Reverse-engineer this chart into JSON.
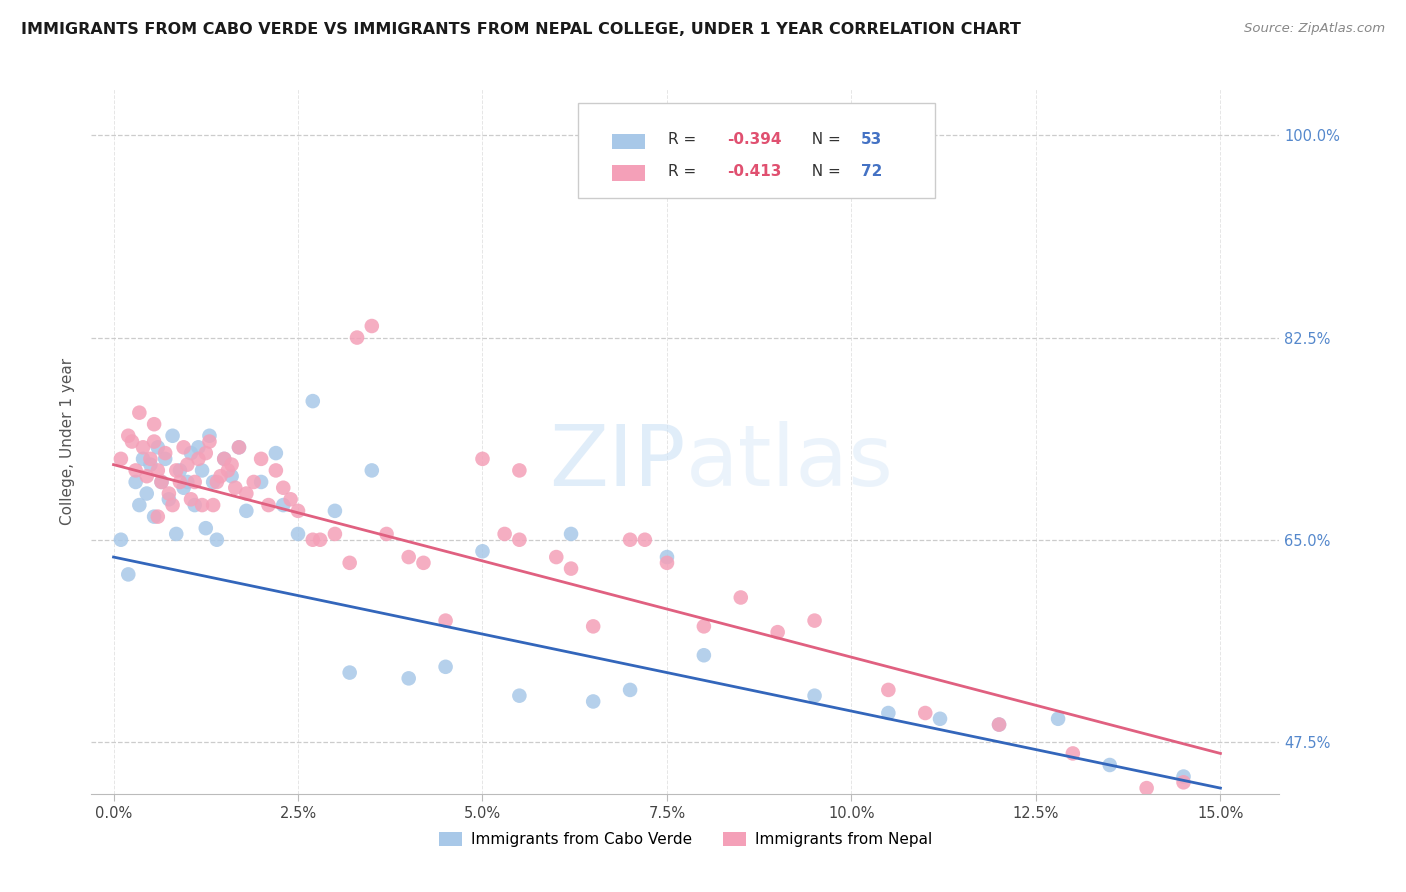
{
  "title": "IMMIGRANTS FROM CABO VERDE VS IMMIGRANTS FROM NEPAL COLLEGE, UNDER 1 YEAR CORRELATION CHART",
  "source": "Source: ZipAtlas.com",
  "ylabel": "College, Under 1 year",
  "legend_labels": [
    "Immigrants from Cabo Verde",
    "Immigrants from Nepal"
  ],
  "cabo_verde_color": "#a8c8e8",
  "nepal_color": "#f4a0b8",
  "cabo_verde_line_color": "#3366bb",
  "nepal_line_color": "#e06080",
  "watermark_zip": "ZIP",
  "watermark_atlas": "atlas",
  "xlim": [
    -0.3,
    15.8
  ],
  "ylim": [
    43.0,
    104.0
  ],
  "x_ticks": [
    0.0,
    2.5,
    5.0,
    7.5,
    10.0,
    12.5,
    15.0
  ],
  "y_ticks": [
    47.5,
    65.0,
    82.5,
    100.0
  ],
  "cabo_verde_x": [
    0.1,
    0.2,
    0.3,
    0.35,
    0.4,
    0.45,
    0.5,
    0.55,
    0.6,
    0.65,
    0.7,
    0.75,
    0.8,
    0.85,
    0.9,
    0.95,
    1.0,
    1.05,
    1.1,
    1.15,
    1.2,
    1.3,
    1.4,
    1.5,
    1.6,
    1.7,
    1.8,
    2.0,
    2.3,
    2.7,
    3.0,
    3.5,
    4.0,
    5.0,
    5.5,
    6.2,
    7.0,
    7.5,
    8.0,
    9.5,
    10.5,
    11.2,
    12.0,
    12.8,
    13.5,
    14.5,
    1.25,
    1.35,
    2.5,
    2.2,
    4.5,
    6.5,
    3.2
  ],
  "cabo_verde_y": [
    65.0,
    62.0,
    70.0,
    68.0,
    72.0,
    69.0,
    71.5,
    67.0,
    73.0,
    70.0,
    72.0,
    68.5,
    74.0,
    65.5,
    71.0,
    69.5,
    70.0,
    72.5,
    68.0,
    73.0,
    71.0,
    74.0,
    65.0,
    72.0,
    70.5,
    73.0,
    67.5,
    70.0,
    68.0,
    77.0,
    67.5,
    71.0,
    53.0,
    64.0,
    51.5,
    65.5,
    52.0,
    63.5,
    55.0,
    51.5,
    50.0,
    49.5,
    49.0,
    49.5,
    45.5,
    44.5,
    66.0,
    70.0,
    65.5,
    72.5,
    54.0,
    51.0,
    53.5
  ],
  "nepal_x": [
    0.1,
    0.2,
    0.25,
    0.3,
    0.35,
    0.4,
    0.45,
    0.5,
    0.55,
    0.6,
    0.65,
    0.7,
    0.75,
    0.8,
    0.85,
    0.9,
    0.95,
    1.0,
    1.05,
    1.1,
    1.15,
    1.2,
    1.3,
    1.4,
    1.5,
    1.6,
    1.7,
    1.8,
    1.9,
    2.0,
    2.1,
    2.2,
    2.3,
    2.5,
    2.7,
    3.0,
    3.3,
    3.5,
    3.7,
    4.0,
    4.5,
    5.0,
    5.5,
    6.0,
    6.5,
    7.0,
    7.5,
    8.0,
    8.5,
    9.0,
    9.5,
    10.5,
    11.0,
    12.0,
    13.0,
    14.0,
    14.5,
    0.6,
    1.25,
    1.35,
    2.8,
    3.2,
    5.3,
    6.2,
    7.2,
    5.5,
    4.2,
    1.55,
    1.65,
    0.55,
    1.45,
    2.4
  ],
  "nepal_y": [
    72.0,
    74.0,
    73.5,
    71.0,
    76.0,
    73.0,
    70.5,
    72.0,
    73.5,
    71.0,
    70.0,
    72.5,
    69.0,
    68.0,
    71.0,
    70.0,
    73.0,
    71.5,
    68.5,
    70.0,
    72.0,
    68.0,
    73.5,
    70.0,
    72.0,
    71.5,
    73.0,
    69.0,
    70.0,
    72.0,
    68.0,
    71.0,
    69.5,
    67.5,
    65.0,
    65.5,
    82.5,
    83.5,
    65.5,
    63.5,
    58.0,
    72.0,
    65.0,
    63.5,
    57.5,
    65.0,
    63.0,
    57.5,
    60.0,
    57.0,
    58.0,
    52.0,
    50.0,
    49.0,
    46.5,
    43.5,
    44.0,
    67.0,
    72.5,
    68.0,
    65.0,
    63.0,
    65.5,
    62.5,
    65.0,
    71.0,
    63.0,
    71.0,
    69.5,
    75.0,
    70.5,
    68.5
  ],
  "cabo_line_x0": 0.0,
  "cabo_line_x1": 15.0,
  "cabo_line_y0": 63.5,
  "cabo_line_y1": 43.5,
  "nepal_line_x0": 0.0,
  "nepal_line_x1": 15.0,
  "nepal_line_y0": 71.5,
  "nepal_line_y1": 46.5
}
